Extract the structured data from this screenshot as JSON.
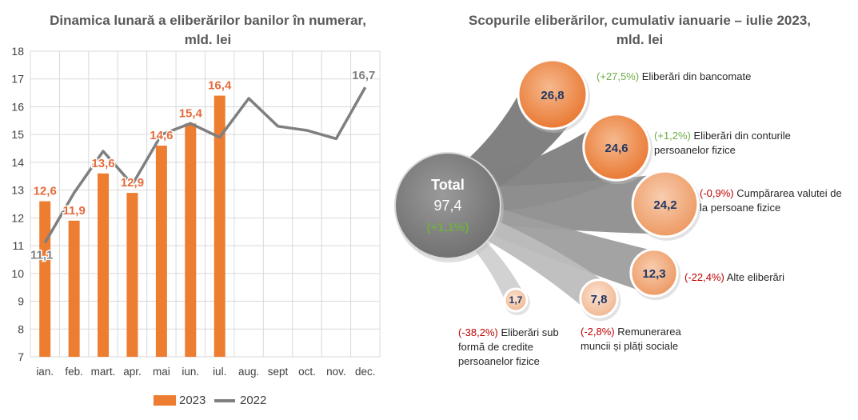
{
  "colors": {
    "bar": "#ED7D31",
    "line": "#7F7F7F",
    "bar_label": "#E46C3C",
    "line_label": "#7F7F7F",
    "grid": "#D9D9D9",
    "positive": "#70AD47",
    "negative": "#C00000",
    "bubble_text": "#203864",
    "total_text": "#FFFFFF"
  },
  "left_chart": {
    "title_line1": "Dinamica lunară a eliberărilor banilor în numerar,",
    "title_line2": "mld. lei",
    "legend": {
      "series_2023": "2023",
      "series_2022": "2022"
    }
  },
  "right_chart": {
    "title_line1": "Scopurile eliberărilor, cumulativ ianuarie – iulie 2023,",
    "title_line2": "mld. lei",
    "total_label": "Total",
    "total_value": "97,4",
    "total_change": "(+1,1%)"
  },
  "chart_data": [
    {
      "type": "bar",
      "title": "Dinamica lunară a eliberărilor banilor în numerar, mld. lei",
      "categories": [
        "ian.",
        "feb.",
        "mart.",
        "apr.",
        "mai",
        "iun.",
        "iul.",
        "aug.",
        "sept",
        "oct.",
        "nov.",
        "dec."
      ],
      "ylim": [
        7,
        18
      ],
      "yticks": [
        "7",
        "8",
        "9",
        "10",
        "11",
        "12",
        "13",
        "14",
        "15",
        "16",
        "17",
        "18"
      ],
      "grid": true,
      "legend_position": "bottom",
      "series": [
        {
          "name": "2023",
          "type": "bar",
          "values": [
            12.6,
            11.9,
            13.6,
            12.9,
            14.6,
            15.4,
            16.4,
            null,
            null,
            null,
            null,
            null
          ],
          "labels": [
            "12,6",
            "11,9",
            "13,6",
            "12,9",
            "14,6",
            "15,4",
            "16,4",
            "",
            "",
            "",
            "",
            ""
          ]
        },
        {
          "name": "2022",
          "type": "line",
          "values": [
            11.1,
            12.9,
            14.4,
            13.2,
            15.0,
            15.4,
            14.9,
            16.3,
            15.3,
            15.15,
            14.85,
            16.7
          ],
          "labels": [
            "11,1",
            "",
            "",
            "",
            "",
            "",
            "",
            "",
            "",
            "",
            "",
            "16,7"
          ]
        }
      ]
    },
    {
      "type": "bubble",
      "title": "Scopurile eliberărilor, cumulativ ianuarie – iulie 2023, mld. lei",
      "total": 97.4,
      "items": [
        {
          "value": 26.8,
          "value_label": "26,8",
          "change": "(+27,5%)",
          "change_sign": "positive",
          "label_lines": [
            "Eliberări din bancomate"
          ]
        },
        {
          "value": 24.6,
          "value_label": "24,6",
          "change": "(+1,2%)",
          "change_sign": "positive",
          "label_lines": [
            "Eliberări din conturile",
            "persoanelor fizice"
          ]
        },
        {
          "value": 24.2,
          "value_label": "24,2",
          "change": "(-0,9%)",
          "change_sign": "negative",
          "label_lines": [
            "Cumpărarea valutei de",
            "la persoane fizice"
          ]
        },
        {
          "value": 12.3,
          "value_label": "12,3",
          "change": "(-22,4%)",
          "change_sign": "negative",
          "label_lines": [
            "Alte eliberări"
          ]
        },
        {
          "value": 7.8,
          "value_label": "7,8",
          "change": "(-2,8%)",
          "change_sign": "negative",
          "label_lines": [
            "Remunerarea",
            "muncii și plăți sociale"
          ]
        },
        {
          "value": 1.7,
          "value_label": "1,7",
          "change": "(-38,2%)",
          "change_sign": "negative",
          "label_lines": [
            "Eliberări sub",
            "formă de credite",
            "persoanelor fizice"
          ]
        }
      ]
    }
  ]
}
